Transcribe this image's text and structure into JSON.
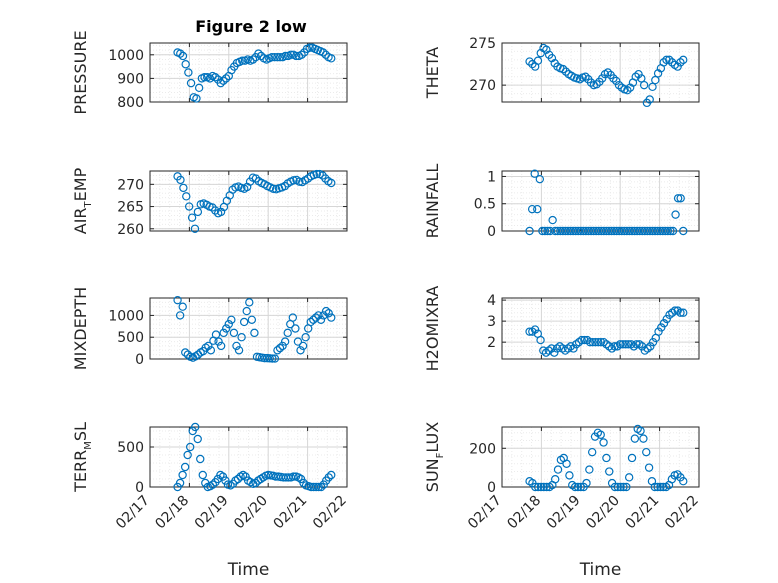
{
  "figure": {
    "title": "Figure 2 low"
  },
  "colors": {
    "marker": "#0072BD",
    "axis": "#262626",
    "grid": "#d6d6d6",
    "minorGrid": "#ebebeb"
  },
  "chart_data": [
    {
      "type": "scatter",
      "ylabel": {
        "main": "PRESSURE",
        "sub": ""
      },
      "ylim": [
        800,
        1050
      ],
      "yticks": [
        "800",
        "900",
        "1000"
      ],
      "ytick_values": [
        800,
        900,
        1000
      ],
      "xlim": [
        17,
        22
      ],
      "x_tick_labels": [],
      "xlabel": "",
      "grid": true,
      "y": [
        1010,
        1005,
        995,
        960,
        925,
        880,
        820,
        815,
        860,
        900,
        905,
        905,
        900,
        910,
        905,
        895,
        880,
        890,
        900,
        910,
        935,
        950,
        965,
        970,
        975,
        975,
        980,
        975,
        980,
        990,
        1005,
        995,
        985,
        980,
        985,
        990,
        990,
        990,
        990,
        990,
        995,
        995,
        1000,
        1000,
        995,
        995,
        1000,
        1010,
        1025,
        1030,
        1030,
        1025,
        1020,
        1015,
        1010,
        1000,
        990,
        985
      ]
    },
    {
      "type": "scatter",
      "ylabel": {
        "main": "THETA",
        "sub": ""
      },
      "ylim": [
        268,
        275
      ],
      "yticks": [
        "270",
        "275"
      ],
      "ytick_values": [
        270,
        275
      ],
      "xlim": [
        17,
        22
      ],
      "x_tick_labels": [],
      "xlabel": "",
      "grid": true,
      "y": [
        272.8,
        272.5,
        272.2,
        272.9,
        273.8,
        274.4,
        274.2,
        273.6,
        273.2,
        272.6,
        272.2,
        272.0,
        271.9,
        271.6,
        271.3,
        271.1,
        270.9,
        270.8,
        270.7,
        270.9,
        271.0,
        270.7,
        270.3,
        270.0,
        270.1,
        270.4,
        270.8,
        271.3,
        271.5,
        271.2,
        270.8,
        270.5,
        270.0,
        269.7,
        269.5,
        269.4,
        269.7,
        270.3,
        271.0,
        271.3,
        270.8,
        270.0,
        267.9,
        268.3,
        269.8,
        270.6,
        271.4,
        272.0,
        272.7,
        273.0,
        273.0,
        272.7,
        272.4,
        272.2,
        272.7,
        273.0
      ]
    },
    {
      "type": "scatter",
      "ylabel": {
        "main": "AIR",
        "sub": "T",
        "tail": "EMP"
      },
      "ylim": [
        259.5,
        273
      ],
      "yticks": [
        "260",
        "265",
        "270"
      ],
      "ytick_values": [
        260,
        265,
        270
      ],
      "xlim": [
        17,
        22
      ],
      "x_tick_labels": [],
      "xlabel": "",
      "grid": true,
      "y": [
        271.8,
        271.0,
        269.2,
        267.3,
        265.0,
        262.5,
        260.0,
        263.8,
        265.5,
        265.7,
        265.4,
        265.0,
        264.8,
        264.1,
        263.5,
        263.8,
        264.9,
        266.3,
        267.5,
        268.8,
        269.3,
        269.5,
        269.2,
        269.0,
        269.4,
        270.6,
        271.5,
        271.3,
        270.7,
        270.3,
        270.0,
        269.6,
        269.3,
        269.0,
        268.9,
        269.1,
        269.3,
        269.6,
        270.2,
        270.6,
        270.9,
        271.0,
        270.6,
        270.5,
        270.9,
        271.3,
        271.8,
        272.1,
        272.3,
        272.3,
        272.0,
        271.3,
        270.7,
        270.3
      ]
    },
    {
      "type": "scatter",
      "ylabel": {
        "main": "RAINFALL",
        "sub": ""
      },
      "ylim": [
        0,
        1.1
      ],
      "yticks": [
        "0",
        "0.5",
        "1"
      ],
      "ytick_values": [
        0,
        0.5,
        1
      ],
      "xlim": [
        17,
        22
      ],
      "x_tick_labels": [],
      "xlabel": "",
      "grid": true,
      "y": [
        0,
        0.4,
        1.05,
        0.4,
        0.95,
        0,
        0,
        0,
        0,
        0.2,
        0,
        0,
        0,
        0,
        0,
        0,
        0,
        0,
        0,
        0,
        0,
        0,
        0,
        0,
        0,
        0,
        0,
        0,
        0,
        0,
        0,
        0,
        0,
        0,
        0,
        0,
        0,
        0,
        0,
        0,
        0,
        0,
        0,
        0,
        0,
        0,
        0,
        0,
        0,
        0,
        0,
        0,
        0,
        0,
        0,
        0,
        0,
        0.3,
        0.6,
        0.6,
        0
      ]
    },
    {
      "type": "scatter",
      "ylabel": {
        "main": "MIXDEPTH",
        "sub": ""
      },
      "ylim": [
        0,
        1400
      ],
      "yticks": [
        "0",
        "500",
        "1000"
      ],
      "ytick_values": [
        0,
        500,
        1000
      ],
      "xlim": [
        17,
        22
      ],
      "x_tick_labels": [],
      "xlabel": "",
      "grid": true,
      "y": [
        1350,
        1000,
        1200,
        150,
        100,
        50,
        30,
        60,
        100,
        150,
        180,
        260,
        300,
        200,
        420,
        560,
        400,
        300,
        600,
        700,
        800,
        900,
        600,
        300,
        200,
        500,
        850,
        1100,
        1300,
        900,
        600,
        50,
        40,
        30,
        20,
        20,
        15,
        10,
        10,
        200,
        250,
        300,
        400,
        600,
        800,
        950,
        700,
        400,
        200,
        300,
        500,
        700,
        850,
        900,
        950,
        1000,
        900,
        1000,
        1100,
        1050,
        950
      ]
    },
    {
      "type": "scatter",
      "ylabel": {
        "main": "H2OMIXRA",
        "sub": ""
      },
      "ylim": [
        1.2,
        4.1
      ],
      "yticks": [
        "2",
        "3",
        "4"
      ],
      "ytick_values": [
        2,
        3,
        4
      ],
      "xlim": [
        17,
        22
      ],
      "x_tick_labels": [],
      "xlabel": "",
      "grid": true,
      "y": [
        2.5,
        2.5,
        2.6,
        2.4,
        2.1,
        1.6,
        1.5,
        1.6,
        1.7,
        1.5,
        1.7,
        1.8,
        1.7,
        1.6,
        1.7,
        1.8,
        1.7,
        1.9,
        2.0,
        2.1,
        2.1,
        2.1,
        2.0,
        2.0,
        2.0,
        2.0,
        2.0,
        2.0,
        1.9,
        1.8,
        1.7,
        1.8,
        1.8,
        1.9,
        1.9,
        1.9,
        1.9,
        1.9,
        1.8,
        1.9,
        1.9,
        1.8,
        1.6,
        1.7,
        1.8,
        2.0,
        2.2,
        2.5,
        2.7,
        2.9,
        3.1,
        3.3,
        3.4,
        3.5,
        3.5,
        3.4,
        3.4
      ]
    },
    {
      "type": "scatter",
      "ylabel": {
        "main": "TERR",
        "sub": "M",
        "tail": "SL"
      },
      "ylim": [
        0,
        750
      ],
      "yticks": [
        "0",
        "500"
      ],
      "ytick_values": [
        0,
        500
      ],
      "xlim": [
        17,
        22
      ],
      "x_tick_labels": [
        "02/17",
        "02/18",
        "02/19",
        "02/20",
        "02/21",
        "02/22"
      ],
      "x_tick_values": [
        17,
        18,
        19,
        20,
        21,
        22
      ],
      "xlabel": "Time",
      "grid": true,
      "y": [
        0,
        50,
        150,
        250,
        400,
        500,
        700,
        750,
        600,
        350,
        150,
        50,
        0,
        10,
        30,
        60,
        100,
        150,
        130,
        80,
        30,
        20,
        40,
        80,
        100,
        130,
        150,
        130,
        80,
        60,
        40,
        50,
        80,
        100,
        120,
        140,
        150,
        145,
        140,
        130,
        130,
        125,
        120,
        120,
        120,
        120,
        130,
        130,
        120,
        100,
        50,
        20,
        10,
        0,
        0,
        0,
        0,
        0,
        30,
        80,
        120,
        150
      ]
    },
    {
      "type": "scatter",
      "ylabel": {
        "main": "SUN",
        "sub": "F",
        "tail": "LUX"
      },
      "ylim": [
        0,
        310
      ],
      "yticks": [
        "0",
        "200"
      ],
      "ytick_values": [
        0,
        200
      ],
      "xlim": [
        17,
        22
      ],
      "x_tick_labels": [
        "02/17",
        "02/18",
        "02/19",
        "02/20",
        "02/21",
        "02/22"
      ],
      "x_tick_values": [
        17,
        18,
        19,
        20,
        21,
        22
      ],
      "xlabel": "Time",
      "grid": true,
      "y": [
        30,
        20,
        0,
        0,
        0,
        0,
        0,
        0,
        10,
        40,
        90,
        140,
        150,
        120,
        60,
        10,
        0,
        0,
        0,
        0,
        20,
        90,
        180,
        260,
        280,
        270,
        230,
        150,
        80,
        20,
        0,
        0,
        0,
        0,
        0,
        50,
        150,
        250,
        300,
        290,
        250,
        180,
        100,
        30,
        0,
        0,
        0,
        0,
        0,
        10,
        40,
        60,
        65,
        50,
        30
      ]
    }
  ]
}
